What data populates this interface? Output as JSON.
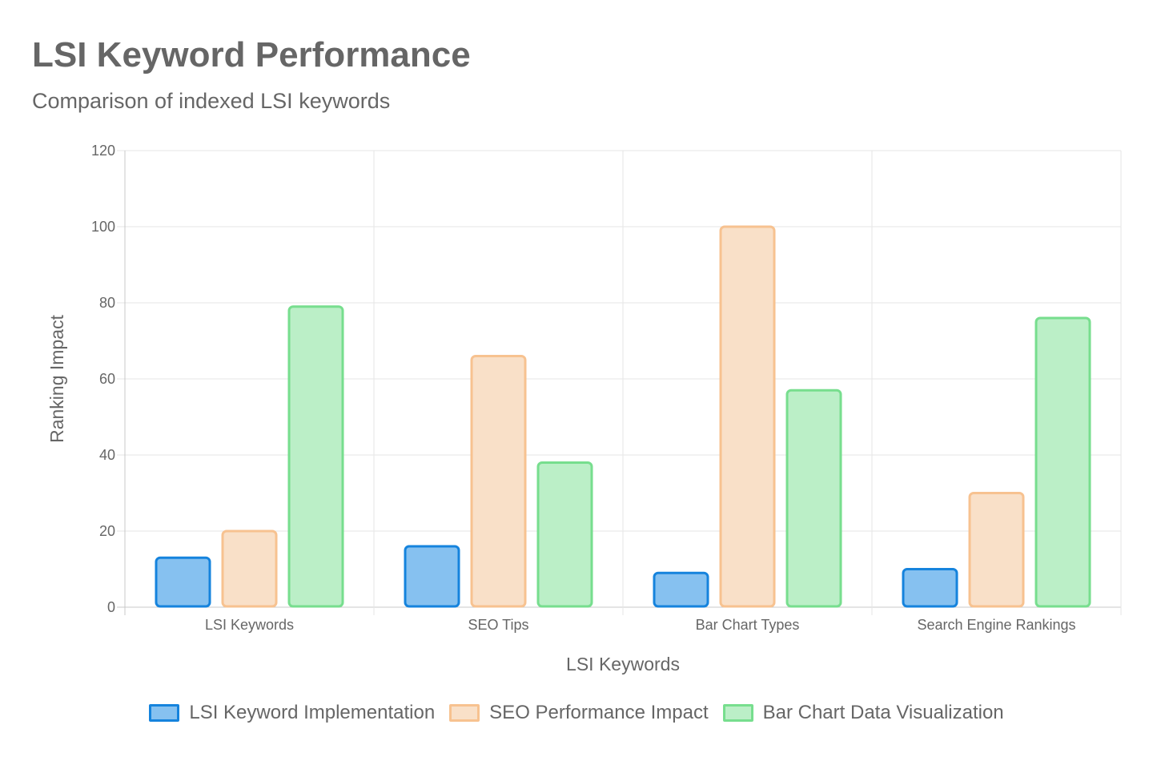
{
  "title": "LSI Keyword Performance",
  "subtitle": "Comparison of indexed LSI keywords",
  "chart_data": {
    "type": "bar",
    "title": "LSI Keyword Performance",
    "subtitle": "Comparison of indexed LSI keywords",
    "xlabel": "LSI Keywords",
    "ylabel": "Ranking Impact",
    "ylim": [
      0,
      120
    ],
    "yticks": [
      0,
      20,
      40,
      60,
      80,
      100,
      120
    ],
    "categories": [
      "LSI Keywords",
      "SEO Tips",
      "Bar Chart Types",
      "Search Engine Rankings"
    ],
    "series": [
      {
        "name": "LSI Keyword Implementation",
        "values": [
          13,
          16,
          9,
          10
        ],
        "fill": "#86c1f0",
        "stroke": "#1583dd"
      },
      {
        "name": "SEO Performance Impact",
        "values": [
          20,
          66,
          100,
          30
        ],
        "fill": "#f9e0c8",
        "stroke": "#f7c290"
      },
      {
        "name": "Bar Chart Data Visualization",
        "values": [
          79,
          38,
          57,
          76
        ],
        "fill": "#bbefc7",
        "stroke": "#77de8e"
      }
    ],
    "grid": true,
    "legend_position": "bottom"
  }
}
